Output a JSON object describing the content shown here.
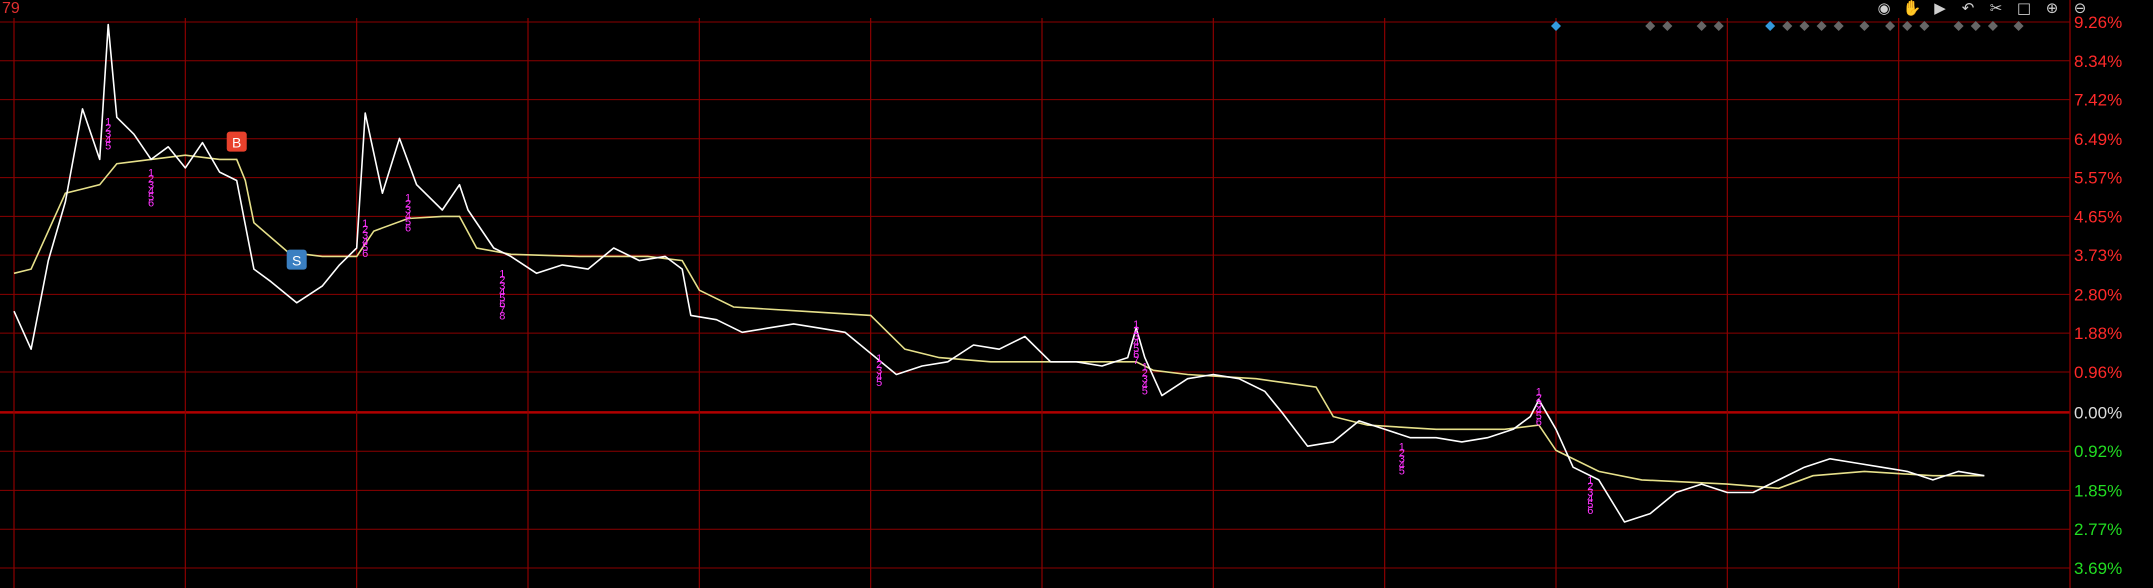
{
  "corner_label": "79",
  "toolbar": {
    "icons": [
      {
        "name": "eye-icon",
        "glyph": "◉"
      },
      {
        "name": "hand-icon",
        "glyph": "✋"
      },
      {
        "name": "play-icon",
        "glyph": "▶"
      },
      {
        "name": "undo-icon",
        "glyph": "↶"
      },
      {
        "name": "scissors-icon",
        "glyph": "✂"
      },
      {
        "name": "square-icon",
        "glyph": "□"
      },
      {
        "name": "zoom-in-icon",
        "glyph": "⊕"
      },
      {
        "name": "zoom-out-icon",
        "glyph": "⊖"
      }
    ]
  },
  "colors": {
    "background": "#000000",
    "grid": "#8b0000",
    "zero_line": "#b00000",
    "price_line": "#ffffff",
    "avg_line": "#e6e08a",
    "positive": "#ff2a2a",
    "negative": "#22dd22",
    "neutral": "#dddddd",
    "marker": "#ff33ff",
    "buy": "#e8412c",
    "sell": "#3a7fc1",
    "diamond_blue": "#3399dd",
    "diamond_gray": "#666666"
  },
  "chart_data": {
    "type": "line",
    "ylim": [
      -3.69,
      9.26
    ],
    "y_tick_labels": [
      "9.26%",
      "8.34%",
      "7.42%",
      "6.49%",
      "5.57%",
      "4.65%",
      "3.73%",
      "2.80%",
      "1.88%",
      "0.96%",
      "0.00%",
      "0.92%",
      "1.85%",
      "2.77%",
      "3.69%"
    ],
    "y_tick_values": [
      9.26,
      8.34,
      7.42,
      6.49,
      5.57,
      4.65,
      3.73,
      2.8,
      1.88,
      0.96,
      0.0,
      -0.92,
      -1.85,
      -2.77,
      -3.69
    ],
    "x_max": 240,
    "series": [
      {
        "role": "price",
        "points": [
          [
            0,
            2.4
          ],
          [
            2,
            1.5
          ],
          [
            4,
            3.6
          ],
          [
            6,
            5.0
          ],
          [
            8,
            7.2
          ],
          [
            10,
            6.0
          ],
          [
            11,
            9.2
          ],
          [
            12,
            7.0
          ],
          [
            14,
            6.6
          ],
          [
            16,
            6.0
          ],
          [
            18,
            6.3
          ],
          [
            20,
            5.8
          ],
          [
            22,
            6.4
          ],
          [
            24,
            5.7
          ],
          [
            26,
            5.5
          ],
          [
            28,
            3.4
          ],
          [
            30,
            3.1
          ],
          [
            33,
            2.6
          ],
          [
            36,
            3.0
          ],
          [
            38,
            3.5
          ],
          [
            40,
            3.9
          ],
          [
            41,
            7.1
          ],
          [
            43,
            5.2
          ],
          [
            45,
            6.5
          ],
          [
            47,
            5.4
          ],
          [
            50,
            4.8
          ],
          [
            52,
            5.4
          ],
          [
            53,
            4.8
          ],
          [
            56,
            3.9
          ],
          [
            58,
            3.7
          ],
          [
            61,
            3.3
          ],
          [
            64,
            3.5
          ],
          [
            67,
            3.4
          ],
          [
            70,
            3.9
          ],
          [
            73,
            3.6
          ],
          [
            76,
            3.7
          ],
          [
            78,
            3.4
          ],
          [
            79,
            2.3
          ],
          [
            82,
            2.2
          ],
          [
            85,
            1.9
          ],
          [
            88,
            2.0
          ],
          [
            91,
            2.1
          ],
          [
            94,
            2.0
          ],
          [
            97,
            1.9
          ],
          [
            100,
            1.4
          ],
          [
            103,
            0.9
          ],
          [
            106,
            1.1
          ],
          [
            109,
            1.2
          ],
          [
            112,
            1.6
          ],
          [
            115,
            1.5
          ],
          [
            118,
            1.8
          ],
          [
            121,
            1.2
          ],
          [
            124,
            1.2
          ],
          [
            127,
            1.1
          ],
          [
            130,
            1.3
          ],
          [
            131,
            2.0
          ],
          [
            132,
            1.3
          ],
          [
            134,
            0.4
          ],
          [
            137,
            0.8
          ],
          [
            140,
            0.9
          ],
          [
            143,
            0.8
          ],
          [
            146,
            0.5
          ],
          [
            148,
            0.0
          ],
          [
            151,
            -0.8
          ],
          [
            154,
            -0.7
          ],
          [
            157,
            -0.2
          ],
          [
            160,
            -0.4
          ],
          [
            163,
            -0.6
          ],
          [
            166,
            -0.6
          ],
          [
            169,
            -0.7
          ],
          [
            172,
            -0.6
          ],
          [
            175,
            -0.4
          ],
          [
            177,
            -0.1
          ],
          [
            178,
            0.3
          ],
          [
            180,
            -0.4
          ],
          [
            182,
            -1.3
          ],
          [
            185,
            -1.6
          ],
          [
            188,
            -2.6
          ],
          [
            191,
            -2.4
          ],
          [
            194,
            -1.9
          ],
          [
            197,
            -1.7
          ],
          [
            200,
            -1.9
          ],
          [
            203,
            -1.9
          ],
          [
            206,
            -1.6
          ],
          [
            209,
            -1.3
          ],
          [
            212,
            -1.1
          ],
          [
            215,
            -1.2
          ],
          [
            218,
            -1.3
          ],
          [
            221,
            -1.4
          ],
          [
            224,
            -1.6
          ],
          [
            227,
            -1.4
          ],
          [
            230,
            -1.5
          ]
        ]
      },
      {
        "role": "average",
        "points": [
          [
            0,
            3.3
          ],
          [
            2,
            3.4
          ],
          [
            4,
            4.3
          ],
          [
            6,
            5.2
          ],
          [
            8,
            5.3
          ],
          [
            10,
            5.4
          ],
          [
            12,
            5.9
          ],
          [
            16,
            6.0
          ],
          [
            20,
            6.1
          ],
          [
            24,
            6.0
          ],
          [
            26,
            6.0
          ],
          [
            27,
            5.5
          ],
          [
            28,
            4.5
          ],
          [
            32,
            3.8
          ],
          [
            36,
            3.7
          ],
          [
            40,
            3.7
          ],
          [
            42,
            4.3
          ],
          [
            46,
            4.6
          ],
          [
            50,
            4.65
          ],
          [
            52,
            4.65
          ],
          [
            54,
            3.9
          ],
          [
            58,
            3.75
          ],
          [
            66,
            3.7
          ],
          [
            74,
            3.7
          ],
          [
            78,
            3.6
          ],
          [
            80,
            2.9
          ],
          [
            84,
            2.5
          ],
          [
            92,
            2.4
          ],
          [
            100,
            2.3
          ],
          [
            104,
            1.5
          ],
          [
            108,
            1.3
          ],
          [
            114,
            1.2
          ],
          [
            120,
            1.2
          ],
          [
            128,
            1.2
          ],
          [
            131,
            1.2
          ],
          [
            133,
            1.0
          ],
          [
            137,
            0.9
          ],
          [
            145,
            0.8
          ],
          [
            152,
            0.6
          ],
          [
            154,
            -0.1
          ],
          [
            158,
            -0.3
          ],
          [
            166,
            -0.4
          ],
          [
            174,
            -0.4
          ],
          [
            178,
            -0.3
          ],
          [
            180,
            -0.9
          ],
          [
            185,
            -1.4
          ],
          [
            190,
            -1.6
          ],
          [
            200,
            -1.7
          ],
          [
            206,
            -1.8
          ],
          [
            210,
            -1.5
          ],
          [
            216,
            -1.4
          ],
          [
            224,
            -1.5
          ],
          [
            230,
            -1.5
          ]
        ]
      }
    ],
    "markers": [
      {
        "x": 11,
        "y": 6.8,
        "labels": [
          "1",
          "2",
          "3",
          "4",
          "5"
        ]
      },
      {
        "x": 16,
        "y": 5.6,
        "labels": [
          "1",
          "2",
          "3",
          "4",
          "5",
          "6"
        ]
      },
      {
        "x": 41,
        "y": 4.4,
        "labels": [
          "1",
          "2",
          "3",
          "4",
          "5",
          "6"
        ]
      },
      {
        "x": 46,
        "y": 5.0,
        "labels": [
          "1",
          "2",
          "3",
          "4",
          "5",
          "6"
        ]
      },
      {
        "x": 57,
        "y": 3.2,
        "labels": [
          "1",
          "2",
          "3",
          "4",
          "5",
          "6",
          "7",
          "8"
        ]
      },
      {
        "x": 101,
        "y": 1.2,
        "labels": [
          "1",
          "2",
          "3",
          "4",
          "5"
        ]
      },
      {
        "x": 131,
        "y": 2.0,
        "labels": [
          "1",
          "2",
          "3",
          "4",
          "5",
          "6",
          "7"
        ]
      },
      {
        "x": 132,
        "y": 1.0,
        "labels": [
          "1",
          "2",
          "3",
          "4",
          "5"
        ]
      },
      {
        "x": 162,
        "y": -0.9,
        "labels": [
          "1",
          "2",
          "3",
          "4",
          "5"
        ]
      },
      {
        "x": 178,
        "y": 0.4,
        "labels": [
          "1",
          "2",
          "3",
          "4",
          "5",
          "6"
        ]
      },
      {
        "x": 184,
        "y": -1.7,
        "labels": [
          "1",
          "2",
          "3",
          "4",
          "5",
          "6"
        ]
      }
    ],
    "trades": [
      {
        "label": "B",
        "x": 26,
        "y": 6.4
      },
      {
        "label": "S",
        "x": 33,
        "y": 3.6
      }
    ],
    "diamonds": {
      "blue": [
        180,
        205
      ],
      "gray": [
        191,
        193,
        197,
        199,
        207,
        209,
        211,
        213,
        216,
        219,
        221,
        223,
        227,
        229,
        231,
        234
      ]
    }
  }
}
